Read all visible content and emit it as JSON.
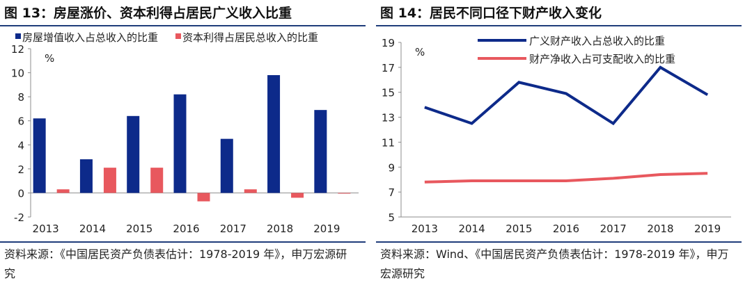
{
  "figures": [
    {
      "title": "图 13：房屋涨价、资本利得占居民广义收入比重",
      "source": "资料来源：《中国居民资产负债表估计：1978-2019 年》，申万宏源研究",
      "unit": "%"
    },
    {
      "title": "图 14：居民不同口径下财产收入变化",
      "source": "资料来源：Wind、《中国居民资产负债表估计：1978-2019 年》，申万宏源研究",
      "unit": "%"
    }
  ],
  "chart_data": [
    {
      "type": "bar",
      "title": "",
      "xlabel": "",
      "ylabel": "%",
      "categories": [
        "2013",
        "2014",
        "2015",
        "2016",
        "2017",
        "2018",
        "2019"
      ],
      "series": [
        {
          "name": "房屋增值收入占总收入的比重",
          "color": "#0d2a8a",
          "values": [
            6.2,
            2.8,
            6.4,
            8.2,
            4.5,
            9.8,
            6.9
          ]
        },
        {
          "name": "资本利得占居民总收入的比重",
          "color": "#e8585e",
          "values": [
            0.3,
            2.1,
            2.1,
            -0.7,
            0.3,
            -0.4,
            0.0
          ]
        }
      ],
      "ylim": [
        -2,
        12
      ],
      "yticks": [
        -2,
        0,
        2,
        4,
        6,
        8,
        10,
        12
      ],
      "grid": false,
      "legend_position": "top-left"
    },
    {
      "type": "line",
      "title": "",
      "xlabel": "",
      "ylabel": "%",
      "x": [
        "2013",
        "2014",
        "2015",
        "2016",
        "2017",
        "2018",
        "2019"
      ],
      "series": [
        {
          "name": "广义财产收入占总收入的比重",
          "color": "#0d2a8a",
          "values": [
            13.8,
            12.5,
            15.8,
            14.9,
            12.5,
            17.0,
            14.8
          ]
        },
        {
          "name": "财产净收入占可支配收入的比重",
          "color": "#e8585e",
          "values": [
            7.8,
            7.9,
            7.9,
            7.9,
            8.1,
            8.4,
            8.5
          ]
        }
      ],
      "ylim": [
        5,
        19
      ],
      "yticks": [
        5,
        7,
        9,
        11,
        13,
        15,
        17,
        19
      ],
      "grid": false,
      "legend_position": "top-left"
    }
  ]
}
